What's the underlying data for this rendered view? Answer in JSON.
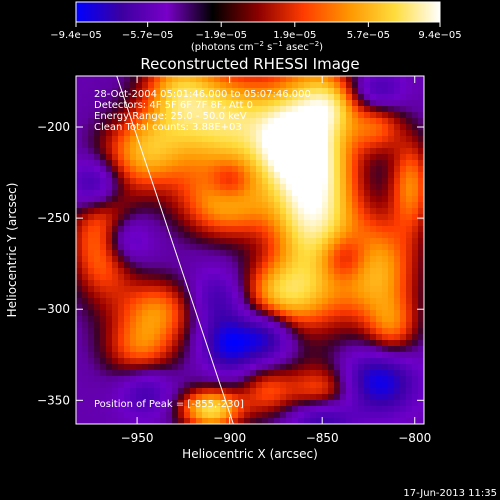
{
  "chart_data": {
    "type": "heatmap",
    "title": "Reconstructed RHESSI Image",
    "xlabel": "Heliocentric X (arcsec)",
    "ylabel": "Heliocentric Y (arcsec)",
    "xlim": [
      -983,
      -795
    ],
    "ylim": [
      -363,
      -172
    ],
    "x_ticks": [
      -950,
      -900,
      -850,
      -800
    ],
    "x_tick_labels": [
      "−950",
      "−900",
      "−850",
      "−800"
    ],
    "y_ticks": [
      -200,
      -250,
      -300,
      -350
    ],
    "y_tick_labels": [
      "−200",
      "−250",
      "−300",
      "−350"
    ],
    "colorbar": {
      "ticks": [
        -9.4e-05,
        -5.7e-05,
        -1.9e-05,
        1.9e-05,
        5.7e-05,
        9.4e-05
      ],
      "tick_labels": [
        "−9.4e−05",
        "−5.7e−05",
        "−1.9e−05",
        "1.9e−05",
        "5.7e−05",
        "9.4e−05"
      ],
      "label_main": "(photons cm",
      "label_exp1": "−2",
      "label_mid": " s",
      "label_exp2": "−1",
      "label_mid2": " asec",
      "label_exp3": "−2",
      "label_end": ")",
      "colors": [
        "#0000ff",
        "#3c00a0",
        "#7800c8",
        "#000000",
        "#8c0000",
        "#ff3c00",
        "#ff9600",
        "#ffdc3c",
        "#ffffff"
      ]
    },
    "annotations": {
      "time": "28-Oct-2004 05:01:46.000 to 05:07:46.000",
      "detectors": "Detectors: 4F 5F 6F 7F 8F, Att 0",
      "energy": "Energy Range: 25.0 - 50.0 keV",
      "method": "Clean     Total counts: 3.88E+03",
      "peak": "Position of Peak = [-855,-230]"
    },
    "peak": [
      -855,
      -230
    ],
    "limb_line": [
      [
        -961,
        -172
      ],
      [
        -898,
        -363
      ]
    ],
    "sources": [
      [
        -855,
        -230,
        3.2,
        16,
        45
      ],
      [
        -900,
        -198,
        2.4,
        22,
        20
      ],
      [
        -928,
        -180,
        1.6,
        14,
        16
      ],
      [
        -902,
        -242,
        1.8,
        18,
        14
      ],
      [
        -968,
        -262,
        2.0,
        12,
        22
      ],
      [
        -946,
        -214,
        1.8,
        16,
        15
      ],
      [
        -822,
        -278,
        2.0,
        16,
        20
      ],
      [
        -870,
        -210,
        1.4,
        12,
        14
      ],
      [
        -875,
        -292,
        1.7,
        16,
        13
      ],
      [
        -938,
        -300,
        1.5,
        15,
        12
      ],
      [
        -948,
        -322,
        1.4,
        14,
        12
      ],
      [
        -850,
        -345,
        1.3,
        14,
        10
      ],
      [
        -880,
        -345,
        1.1,
        10,
        10
      ],
      [
        -910,
        -355,
        2.4,
        12,
        8
      ],
      [
        -812,
        -310,
        1.2,
        10,
        12
      ],
      [
        -845,
        -188,
        1.0,
        10,
        10
      ],
      [
        -802,
        -232,
        1.6,
        8,
        18
      ],
      [
        -820,
        -200,
        1.2,
        10,
        10
      ],
      [
        -972,
        -232,
        -1.6,
        10,
        10
      ],
      [
        -958,
        -262,
        -1.4,
        10,
        10
      ],
      [
        -905,
        -295,
        -1.2,
        12,
        12
      ],
      [
        -900,
        -320,
        -1.6,
        10,
        10
      ],
      [
        -838,
        -272,
        -1.2,
        10,
        10
      ],
      [
        -880,
        -315,
        -1.5,
        10,
        10
      ],
      [
        -820,
        -340,
        -1.8,
        14,
        12
      ],
      [
        -850,
        -360,
        -1.3,
        12,
        8
      ],
      [
        -945,
        -345,
        -1.0,
        10,
        10
      ],
      [
        -820,
        -180,
        -1.0,
        10,
        8
      ],
      [
        -900,
        -230,
        -0.8,
        8,
        8
      ]
    ]
  },
  "footer": {
    "timestamp": "17-Jun-2013 11:35"
  }
}
